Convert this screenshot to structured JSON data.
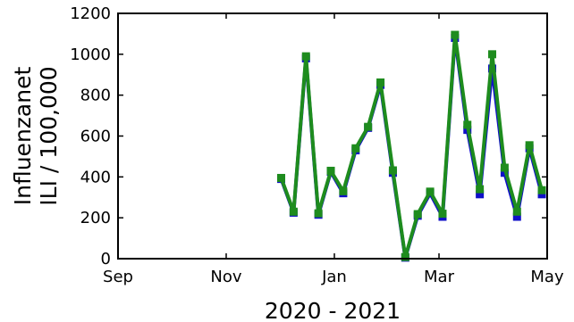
{
  "chart_data": {
    "type": "line",
    "xlabel": "2020 - 2021",
    "ylabel": [
      "Influenzanet",
      "ILI / 100,000"
    ],
    "ylim": [
      0,
      1200
    ],
    "yticks": [
      0,
      200,
      400,
      600,
      800,
      1000,
      1200
    ],
    "xlim": [
      "2020-09-01",
      "2021-05-01"
    ],
    "xticks": [
      {
        "date": "2020-09-01",
        "label": "Sep"
      },
      {
        "date": "2020-11-01",
        "label": "Nov"
      },
      {
        "date": "2021-01-01",
        "label": "Jan"
      },
      {
        "date": "2021-03-01",
        "label": "Mar"
      },
      {
        "date": "2021-05-01",
        "label": "May"
      }
    ],
    "grid": false,
    "legend": "none",
    "series": [
      {
        "color": "#1010c8",
        "marker": "square",
        "x": [
          "2020-12-02",
          "2020-12-09",
          "2020-12-16",
          "2020-12-23",
          "2020-12-30",
          "2021-01-06",
          "2021-01-13",
          "2021-01-20",
          "2021-01-27",
          "2021-02-03",
          "2021-02-10",
          "2021-02-17",
          "2021-02-24",
          "2021-03-03",
          "2021-03-10",
          "2021-03-17",
          "2021-03-24",
          "2021-03-31",
          "2021-04-07",
          "2021-04-14",
          "2021-04-21",
          "2021-04-28"
        ],
        "y": [
          390,
          225,
          980,
          215,
          425,
          320,
          530,
          640,
          850,
          420,
          5,
          210,
          320,
          205,
          1080,
          630,
          315,
          930,
          420,
          205,
          540,
          315
        ]
      },
      {
        "color": "#1e8c1e",
        "marker": "square",
        "x": [
          "2020-12-02",
          "2020-12-09",
          "2020-12-16",
          "2020-12-23",
          "2020-12-30",
          "2021-01-06",
          "2021-01-13",
          "2021-01-20",
          "2021-01-27",
          "2021-02-03",
          "2021-02-10",
          "2021-02-17",
          "2021-02-24",
          "2021-03-03",
          "2021-03-10",
          "2021-03-17",
          "2021-03-24",
          "2021-03-31",
          "2021-04-07",
          "2021-04-14",
          "2021-04-21",
          "2021-04-28"
        ],
        "y": [
          395,
          230,
          990,
          222,
          430,
          330,
          540,
          645,
          862,
          432,
          8,
          218,
          328,
          220,
          1095,
          655,
          340,
          1000,
          445,
          230,
          555,
          335
        ]
      }
    ]
  }
}
